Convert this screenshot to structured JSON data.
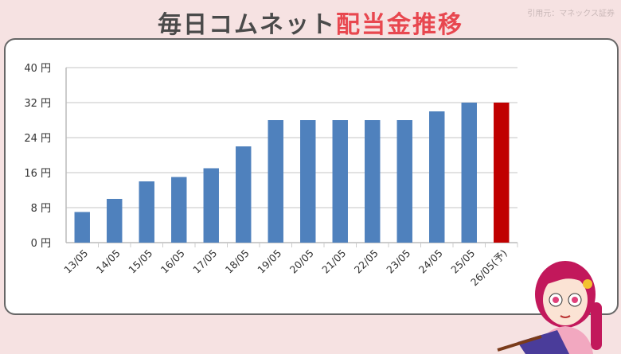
{
  "header": {
    "title_part1": "毎日コムネット",
    "title_part2": "配当金推移",
    "source": "引用元：マネックス証券"
  },
  "colors": {
    "bar": "#4f81bd",
    "forecast_bar": "#c00000",
    "title_accent": "#e8474f"
  },
  "chart_data": {
    "type": "bar",
    "title": "毎日コムネット配当金推移",
    "xlabel": "",
    "ylabel": "",
    "categories": [
      "13/05",
      "14/05",
      "15/05",
      "16/05",
      "17/05",
      "18/05",
      "19/05",
      "20/05",
      "21/05",
      "22/05",
      "23/05",
      "24/05",
      "25/05",
      "26/05(予)"
    ],
    "values": [
      7,
      10,
      14,
      15,
      17,
      22,
      28,
      28,
      28,
      28,
      28,
      30,
      32,
      32
    ],
    "forecast_index": 13,
    "ylim": [
      0,
      40
    ],
    "yticks": [
      0,
      8,
      16,
      24,
      32,
      40
    ],
    "ytick_labels": [
      "0 円",
      "8 円",
      "16 円",
      "24 円",
      "32 円",
      "40 円"
    ],
    "grid": true,
    "legend": "none"
  }
}
